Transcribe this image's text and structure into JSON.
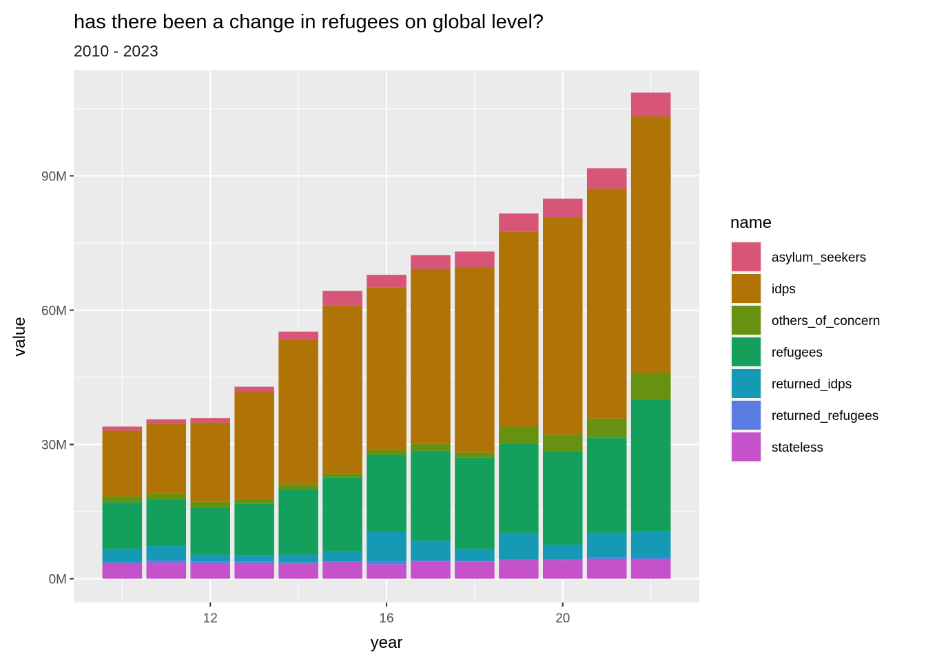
{
  "chart_data": {
    "type": "bar",
    "stacked": true,
    "title": "has there been a change in refugees on global level?",
    "subtitle": "2010 - 2023",
    "xlabel": "year",
    "ylabel": "value",
    "x": [
      10,
      11,
      12,
      13,
      14,
      15,
      16,
      17,
      18,
      19,
      20,
      21,
      22
    ],
    "xlim": [
      8.9,
      23.1
    ],
    "x_ticks": [
      12,
      16,
      20
    ],
    "x_tick_labels": [
      "12",
      "16",
      "20"
    ],
    "ylim": [
      -5.3,
      113.6
    ],
    "y_unit": "M",
    "y_ticks": [
      0,
      30,
      60,
      90
    ],
    "y_tick_labels": [
      "0M",
      "30M",
      "60M",
      "90M"
    ],
    "grid": true,
    "legend": {
      "title": "name",
      "position": "right"
    },
    "series": [
      {
        "name": "stateless",
        "color": "#C551CB",
        "values": [
          3.5,
          3.6,
          3.4,
          3.5,
          3.5,
          3.7,
          3.2,
          3.9,
          3.9,
          4.2,
          4.2,
          4.4,
          4.4
        ]
      },
      {
        "name": "returned_refugees",
        "color": "#5A7BE2",
        "values": [
          0.2,
          0.5,
          0.5,
          0.4,
          0.1,
          0.2,
          0.6,
          0.2,
          0.1,
          0.1,
          0.1,
          0.4,
          0.3
        ]
      },
      {
        "name": "returned_idps",
        "color": "#1599B5",
        "values": [
          2.9,
          3.2,
          1.5,
          1.3,
          1.8,
          2.2,
          6.6,
          4.4,
          2.6,
          5.8,
          3.3,
          5.3,
          5.9
        ]
      },
      {
        "name": "refugees",
        "color": "#159F5C",
        "values": [
          10.5,
          10.4,
          10.5,
          11.6,
          14.6,
          16.5,
          17.3,
          20.1,
          20.5,
          20.1,
          20.8,
          21.4,
          29.4
        ]
      },
      {
        "name": "others_of_concern",
        "color": "#679110",
        "values": [
          1.3,
          1.4,
          1.3,
          1.0,
          1.1,
          1.0,
          1.0,
          1.5,
          1.1,
          3.8,
          3.8,
          4.3,
          6.0
        ]
      },
      {
        "name": "idps",
        "color": "#B07305",
        "values": [
          14.7,
          15.5,
          17.7,
          23.9,
          32.3,
          37.5,
          36.4,
          39.1,
          41.4,
          43.5,
          48.6,
          51.3,
          57.3
        ]
      },
      {
        "name": "asylum_seekers",
        "color": "#D75576",
        "values": [
          0.9,
          1.0,
          1.0,
          1.2,
          1.8,
          3.2,
          2.8,
          3.1,
          3.5,
          4.1,
          4.1,
          4.6,
          5.3
        ]
      }
    ]
  }
}
